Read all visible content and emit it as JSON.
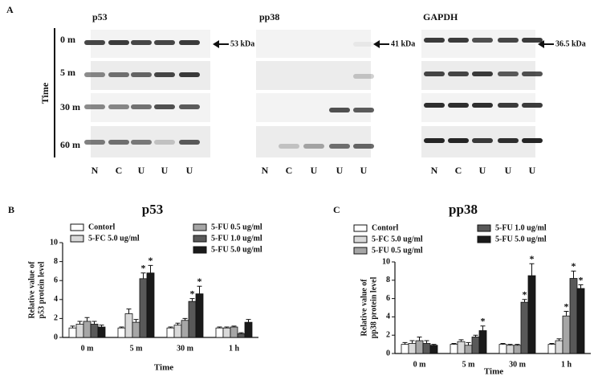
{
  "panel_a": {
    "label": "A",
    "time_label": "Time",
    "rows": [
      "0 m",
      "5 m",
      "30 m",
      "60 m"
    ],
    "blots": [
      {
        "title": "p53",
        "marker": "53 kDa",
        "lanes": [
          "N",
          "C",
          "U",
          "U",
          "U"
        ]
      },
      {
        "title": "pp38",
        "marker": "41 kDa",
        "lanes": [
          "N",
          "C",
          "U",
          "U",
          "U"
        ]
      },
      {
        "title": "GAPDH",
        "marker": "36.5 kDa",
        "lanes": [
          "N",
          "C",
          "U",
          "U",
          "U"
        ]
      }
    ]
  },
  "chart_data": [
    {
      "type": "bar",
      "panel": "B",
      "title": "p53",
      "ylabel": [
        "Relative value of",
        "p53 protein level"
      ],
      "xlabel": "Time",
      "categories": [
        "0 m",
        "5 m",
        "30 m",
        "1 h"
      ],
      "ylim": [
        0,
        10
      ],
      "yticks": [
        0,
        2,
        4,
        6,
        8,
        10
      ],
      "series": [
        {
          "name": "Contorl",
          "color": "#ffffff",
          "values": [
            1.0,
            1.0,
            1.0,
            1.0
          ],
          "errors": [
            0.2,
            0.1,
            0.1,
            0.1
          ],
          "stars": [
            null,
            null,
            null,
            null
          ]
        },
        {
          "name": "5-FC 5.0 ug/ml",
          "color": "#d9d9d9",
          "values": [
            1.4,
            2.5,
            1.3,
            1.0
          ],
          "errors": [
            0.3,
            0.5,
            0.2,
            0.1
          ],
          "stars": [
            null,
            null,
            null,
            null
          ]
        },
        {
          "name": "5-FU 0.5 ug/ml",
          "color": "#a6a6a6",
          "values": [
            1.7,
            1.6,
            1.8,
            1.1
          ],
          "errors": [
            0.4,
            0.3,
            0.2,
            0.1
          ],
          "stars": [
            null,
            null,
            null,
            null
          ]
        },
        {
          "name": "5-FU 1.0 ug/ml",
          "color": "#595959",
          "values": [
            1.4,
            6.2,
            3.8,
            0.4
          ],
          "errors": [
            0.3,
            0.6,
            0.3,
            0.1
          ],
          "stars": [
            null,
            "*",
            "*",
            null
          ]
        },
        {
          "name": "5-FU 5.0 ug/ml",
          "color": "#1a1a1a",
          "values": [
            1.1,
            6.8,
            4.6,
            1.6
          ],
          "errors": [
            0.2,
            0.8,
            0.8,
            0.3
          ],
          "stars": [
            null,
            "*",
            "*",
            null
          ]
        }
      ]
    },
    {
      "type": "bar",
      "panel": "C",
      "title": "pp38",
      "ylabel": [
        "Relative value of",
        "pp38 protein level"
      ],
      "xlabel": "Time",
      "categories": [
        "0 m",
        "5 m",
        "30 m",
        "1 h"
      ],
      "ylim": [
        0,
        10
      ],
      "yticks": [
        0,
        2,
        4,
        6,
        8,
        10
      ],
      "series": [
        {
          "name": "Contorl",
          "color": "#ffffff",
          "values": [
            1.0,
            1.0,
            1.0,
            1.0
          ],
          "errors": [
            0.2,
            0.1,
            0.1,
            0.1
          ],
          "stars": [
            null,
            null,
            null,
            null
          ]
        },
        {
          "name": "5-FC 5.0 ug/ml",
          "color": "#d9d9d9",
          "values": [
            1.1,
            1.3,
            0.9,
            1.4
          ],
          "errors": [
            0.3,
            0.2,
            0.1,
            0.2
          ],
          "stars": [
            null,
            null,
            null,
            null
          ]
        },
        {
          "name": "5-FU 0.5 ug/ml",
          "color": "#a6a6a6",
          "values": [
            1.4,
            0.9,
            0.9,
            4.1
          ],
          "errors": [
            0.4,
            0.3,
            0.1,
            0.5
          ],
          "stars": [
            null,
            null,
            null,
            "*"
          ]
        },
        {
          "name": "5-FU 1.0 ug/ml",
          "color": "#595959",
          "values": [
            1.1,
            1.8,
            5.6,
            8.2
          ],
          "errors": [
            0.3,
            0.2,
            0.3,
            0.8
          ],
          "stars": [
            null,
            null,
            "*",
            "*"
          ]
        },
        {
          "name": "5-FU 5.0 ug/ml",
          "color": "#1a1a1a",
          "values": [
            0.9,
            2.5,
            8.5,
            7.1
          ],
          "errors": [
            0.1,
            0.5,
            1.3,
            0.4
          ],
          "stars": [
            null,
            "*",
            "*",
            "*"
          ]
        }
      ]
    }
  ]
}
